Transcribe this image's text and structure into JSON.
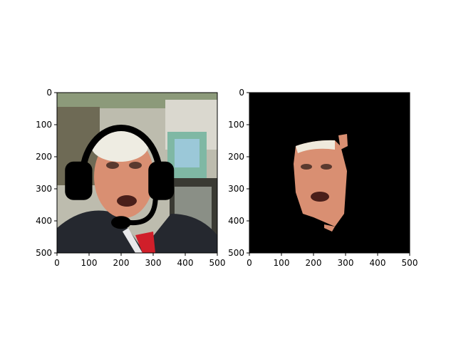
{
  "chart_data": [
    {
      "type": "image",
      "title": "",
      "xlabel": "",
      "ylabel": "",
      "xlim": [
        0,
        500
      ],
      "ylim": [
        500,
        0
      ],
      "xticks": [
        0,
        100,
        200,
        300,
        400,
        500
      ],
      "yticks": [
        0,
        100,
        200,
        300,
        400,
        500
      ],
      "grid": false,
      "content": "photo of a man's face with a black headset drawn over it",
      "overlay": {
        "name": "headset",
        "color": "#000000",
        "left_earcup": {
          "x": [
            25,
            110
          ],
          "y": [
            215,
            335
          ]
        },
        "right_earcup": {
          "x": [
            285,
            365
          ],
          "y": [
            215,
            335
          ]
        },
        "headband": {
          "cx": 200,
          "cy": 260,
          "rx": 120,
          "ry": 150
        },
        "mic_boom_end": [
          200,
          405
        ]
      }
    },
    {
      "type": "image",
      "title": "",
      "xlabel": "",
      "ylabel": "",
      "xlim": [
        0,
        500
      ],
      "ylim": [
        500,
        0
      ],
      "xticks": [
        0,
        100,
        200,
        300,
        400,
        500
      ],
      "yticks": [
        0,
        100,
        200,
        300,
        400,
        500
      ],
      "grid": false,
      "content": "segmentation mask: face region of the photo on a black background",
      "background_color": "#000000",
      "face_region": {
        "x": [
          140,
          300
        ],
        "y": [
          155,
          430
        ]
      }
    }
  ],
  "colors": {
    "background": "#ffffff",
    "axes": "#000000",
    "skin": "#d98f72",
    "suit": "#23262d",
    "tie": "#c4202a",
    "hair": "#e8e6dc",
    "backdrop_light": "#c8c6b8",
    "backdrop_dark": "#4a4a40"
  }
}
